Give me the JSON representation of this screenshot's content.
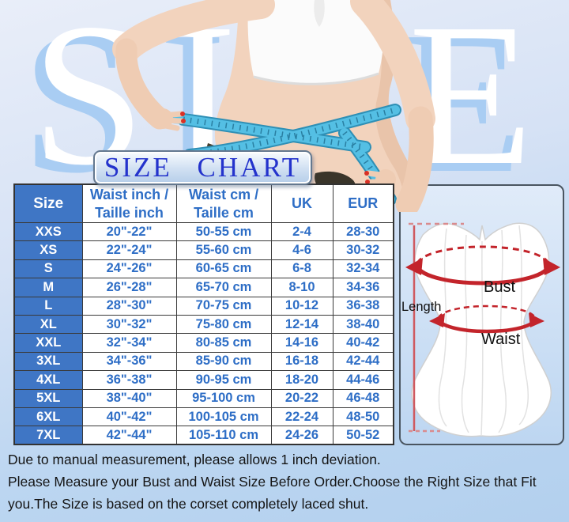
{
  "watermark": "SIZE",
  "title": "SIZE CHART",
  "table": {
    "headers": [
      "Size",
      "Waist  inch /\nTaille inch",
      "Waist  cm /\nTaille   cm",
      "UK",
      "EUR"
    ],
    "rows": [
      {
        "size": "XXS",
        "waist_inch": "20\"-22\"",
        "waist_cm": "50-55 cm",
        "uk": "2-4",
        "eur": "28-30"
      },
      {
        "size": "XS",
        "waist_inch": "22\"-24\"",
        "waist_cm": "55-60 cm",
        "uk": "4-6",
        "eur": "30-32"
      },
      {
        "size": "S",
        "waist_inch": "24\"-26\"",
        "waist_cm": "60-65 cm",
        "uk": "6-8",
        "eur": "32-34"
      },
      {
        "size": "M",
        "waist_inch": "26\"-28\"",
        "waist_cm": "65-70 cm",
        "uk": "8-10",
        "eur": "34-36"
      },
      {
        "size": "L",
        "waist_inch": "28\"-30\"",
        "waist_cm": "70-75 cm",
        "uk": "10-12",
        "eur": "36-38"
      },
      {
        "size": "XL",
        "waist_inch": "30\"-32\"",
        "waist_cm": "75-80 cm",
        "uk": "12-14",
        "eur": "38-40"
      },
      {
        "size": "XXL",
        "waist_inch": "32\"-34\"",
        "waist_cm": "80-85 cm",
        "uk": "14-16",
        "eur": "40-42"
      },
      {
        "size": "3XL",
        "waist_inch": "34\"-36\"",
        "waist_cm": "85-90 cm",
        "uk": "16-18",
        "eur": "42-44"
      },
      {
        "size": "4XL",
        "waist_inch": "36\"-38\"",
        "waist_cm": "90-95 cm",
        "uk": "18-20",
        "eur": "44-46"
      },
      {
        "size": "5XL",
        "waist_inch": "38\"-40\"",
        "waist_cm": "95-100 cm",
        "uk": "20-22",
        "eur": "46-48"
      },
      {
        "size": "6XL",
        "waist_inch": "40\"-42\"",
        "waist_cm": "100-105 cm",
        "uk": "22-24",
        "eur": "48-50"
      },
      {
        "size": "7XL",
        "waist_inch": "42\"-44\"",
        "waist_cm": "105-110 cm",
        "uk": "24-26",
        "eur": "50-52"
      }
    ]
  },
  "diagram": {
    "length_label": "Length",
    "bust_label": "Bust",
    "waist_label": "Waist"
  },
  "notes": [
    "Due to manual measurement, please allows 1 inch deviation.",
    "Please Measure your Bust and Waist Size Before Order.Choose the Right Size that Fit you.The Size is based on the corset completely laced shut."
  ],
  "colors": {
    "table_blue_fill": "#3f76c5",
    "table_text_blue": "#2e6ec6",
    "title_blue": "#2433cc",
    "annotation_red": "#c3242b",
    "length_line_red": "#cf5a60",
    "tape_blue": "#54bfe4",
    "note_text": "#141414",
    "background_blue": "#b3d0ee"
  }
}
